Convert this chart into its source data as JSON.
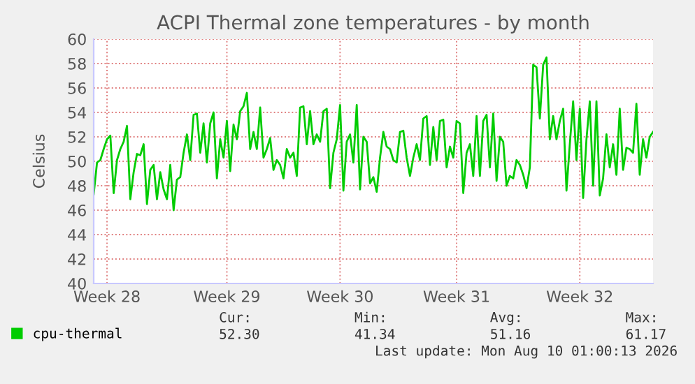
{
  "chart_data": {
    "type": "line",
    "title": "ACPI Thermal zone temperatures - by month",
    "ylabel": "Celsius",
    "categories": [
      null,
      null,
      null,
      null,
      "Week 28",
      null,
      null,
      null,
      null,
      null,
      null,
      null,
      null,
      null,
      null,
      null,
      null,
      null,
      null,
      null,
      null,
      null,
      null,
      null,
      null,
      null,
      null,
      null,
      null,
      null,
      null,
      null,
      null,
      null,
      null,
      null,
      null,
      null,
      null,
      null,
      "Week 29",
      null,
      null,
      null,
      null,
      null,
      null,
      null,
      null,
      null,
      null,
      null,
      null,
      null,
      null,
      null,
      null,
      null,
      null,
      null,
      null,
      null,
      null,
      null,
      null,
      null,
      null,
      null,
      null,
      null,
      null,
      null,
      null,
      null,
      "Week 30",
      null,
      null,
      null,
      null,
      null,
      null,
      null,
      null,
      null,
      null,
      null,
      null,
      null,
      null,
      null,
      null,
      null,
      null,
      null,
      null,
      null,
      null,
      null,
      null,
      null,
      null,
      null,
      null,
      null,
      null,
      null,
      null,
      null,
      null,
      "Week 31",
      null,
      null,
      null,
      null,
      null,
      null,
      null,
      null,
      null,
      null,
      null,
      null,
      null,
      null,
      null,
      null,
      null,
      null,
      null,
      null,
      null,
      null,
      null,
      null,
      null,
      null,
      null,
      null,
      null,
      null,
      null,
      null,
      null,
      null,
      null,
      null,
      "Week 32",
      null,
      null,
      null,
      null,
      null,
      null,
      null,
      null,
      null,
      null,
      null,
      null,
      null,
      null,
      null,
      null,
      null,
      null,
      null,
      null,
      null,
      null
    ],
    "ylim": [
      40,
      60
    ],
    "yticks": [
      40,
      42,
      44,
      46,
      48,
      50,
      52,
      54,
      56,
      58,
      60
    ],
    "grid": true,
    "legend": "bottom",
    "marker": "none",
    "line_style": "solid",
    "annotations": [
      "Cur:",
      "Min:",
      "Avg:",
      "Max:",
      "52.30",
      "41.34",
      "51.16",
      "61.17",
      "Last update: Mon Aug 10 01:00:13 2026"
    ],
    "series": [
      {
        "name": "cpu-thermal",
        "color": "#00cc00",
        "values": [
          47.3,
          49.9,
          50.1,
          51.0,
          51.8,
          52.1,
          47.4,
          50.1,
          51.0,
          51.6,
          52.9,
          46.9,
          49.1,
          50.6,
          50.5,
          51.4,
          46.5,
          49.3,
          49.7,
          46.9,
          49.1,
          47.7,
          46.9,
          49.7,
          46.0,
          48.5,
          48.7,
          50.7,
          52.2,
          50.1,
          53.8,
          53.9,
          50.7,
          53.1,
          49.9,
          53.1,
          54.0,
          48.6,
          51.8,
          50.3,
          53.3,
          49.2,
          53.0,
          51.8,
          54.1,
          54.5,
          55.6,
          51.0,
          52.4,
          51.0,
          54.4,
          50.3,
          51.0,
          51.9,
          49.3,
          50.1,
          49.7,
          48.6,
          51.0,
          50.3,
          50.7,
          48.8,
          54.4,
          54.5,
          51.4,
          54.1,
          51.4,
          52.2,
          51.6,
          54.1,
          54.3,
          47.8,
          50.7,
          51.8,
          54.6,
          47.6,
          51.6,
          52.2,
          49.9,
          54.6,
          47.7,
          52.0,
          51.6,
          48.2,
          48.7,
          47.5,
          50.3,
          52.4,
          51.2,
          51.0,
          50.1,
          49.9,
          52.4,
          52.5,
          50.3,
          48.8,
          50.3,
          51.4,
          50.1,
          53.5,
          53.7,
          49.7,
          52.8,
          50.1,
          53.3,
          53.4,
          49.5,
          51.2,
          50.3,
          53.3,
          53.1,
          47.4,
          50.7,
          51.4,
          48.8,
          53.7,
          48.8,
          53.3,
          53.8,
          49.5,
          53.9,
          48.4,
          52.0,
          51.6,
          48.0,
          48.8,
          48.6,
          50.1,
          49.7,
          48.9,
          47.8,
          49.5,
          57.9,
          57.7,
          53.5,
          57.9,
          58.5,
          51.8,
          53.7,
          51.8,
          53.3,
          54.3,
          47.6,
          51.4,
          54.9,
          50.1,
          54.3,
          47.0,
          51.8,
          54.9,
          48.0,
          54.9,
          47.2,
          48.6,
          52.2,
          49.5,
          51.4,
          48.9,
          54.3,
          49.3,
          51.1,
          51.0,
          50.7,
          54.7,
          48.9,
          51.8,
          50.3,
          52.0,
          52.4
        ]
      }
    ]
  }
}
